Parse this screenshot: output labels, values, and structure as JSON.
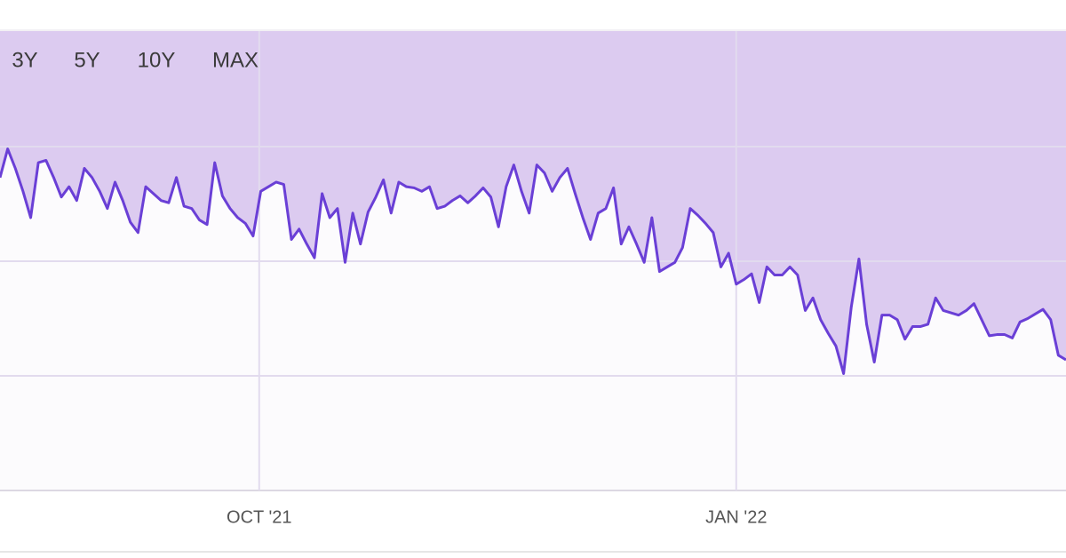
{
  "range_buttons": [
    "3Y",
    "5Y",
    "10Y",
    "MAX"
  ],
  "chart_data": {
    "type": "line",
    "color": "#6a3fd6",
    "area_color": "#dccbf0",
    "grid": true,
    "values": [
      2.73,
      2.98,
      2.81,
      2.61,
      2.38,
      2.86,
      2.88,
      2.73,
      2.56,
      2.65,
      2.53,
      2.81,
      2.73,
      2.61,
      2.46,
      2.69,
      2.53,
      2.34,
      2.25,
      2.65,
      2.59,
      2.53,
      2.51,
      2.73,
      2.48,
      2.46,
      2.36,
      2.32,
      2.86,
      2.57,
      2.46,
      2.38,
      2.33,
      2.22,
      2.61,
      2.65,
      2.69,
      2.67,
      2.19,
      2.28,
      2.15,
      2.03,
      2.59,
      2.38,
      2.46,
      1.99,
      2.42,
      2.15,
      2.43,
      2.56,
      2.71,
      2.42,
      2.69,
      2.65,
      2.64,
      2.61,
      2.65,
      2.46,
      2.48,
      2.53,
      2.57,
      2.51,
      2.57,
      2.64,
      2.56,
      2.3,
      2.65,
      2.84,
      2.61,
      2.42,
      2.84,
      2.77,
      2.61,
      2.73,
      2.81,
      2.59,
      2.38,
      2.19,
      2.42,
      2.46,
      2.64,
      2.15,
      2.3,
      2.15,
      1.99,
      2.38,
      1.91,
      1.95,
      1.99,
      2.12,
      2.46,
      2.4,
      2.33,
      2.25,
      1.95,
      2.07,
      1.8,
      1.84,
      1.89,
      1.64,
      1.95,
      1.88,
      1.88,
      1.95,
      1.88,
      1.57,
      1.68,
      1.49,
      1.37,
      1.26,
      1.02,
      1.6,
      2.02,
      1.45,
      1.12,
      1.53,
      1.53,
      1.49,
      1.32,
      1.43,
      1.43,
      1.45,
      1.68,
      1.57,
      1.55,
      1.53,
      1.57,
      1.63,
      1.49,
      1.35,
      1.36,
      1.36,
      1.33,
      1.47,
      1.5,
      1.54,
      1.58,
      1.49,
      1.18,
      1.14
    ],
    "xlim": [
      0,
      139
    ],
    "xticks": [
      {
        "value": 33.8,
        "label": "OCT '21"
      },
      {
        "value": 96,
        "label": "JAN '22"
      }
    ],
    "ylim": [
      0,
      4
    ],
    "yticks": [
      0,
      1,
      2,
      3
    ]
  }
}
